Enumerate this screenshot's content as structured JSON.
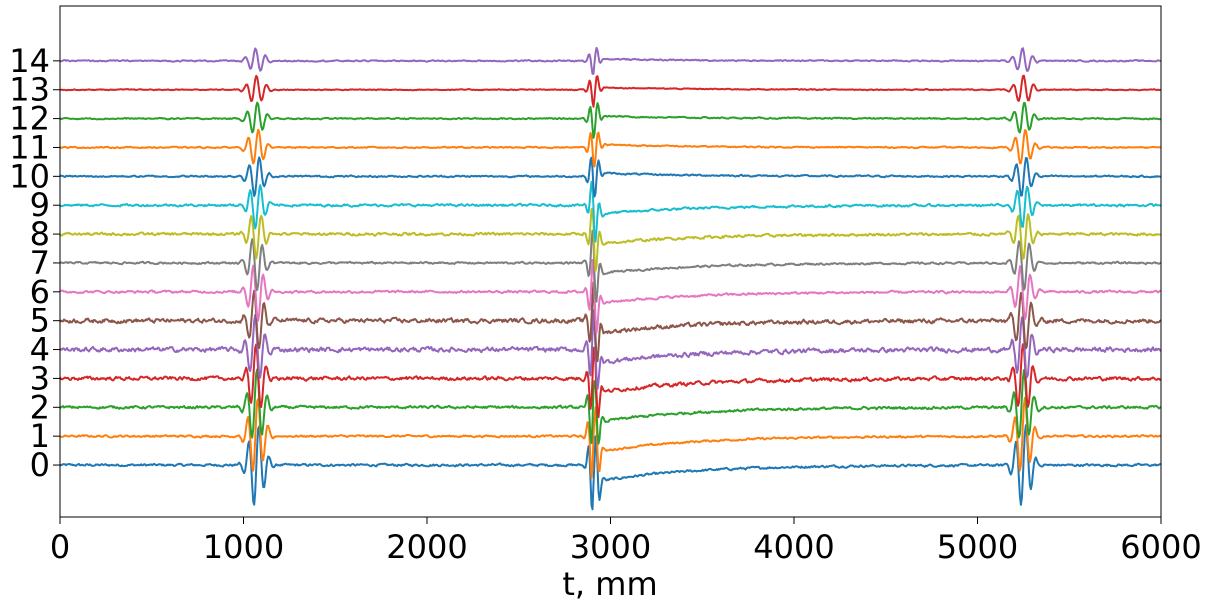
{
  "chart_data": {
    "type": "line",
    "title": "",
    "xlabel": "t, mm",
    "ylabel": "",
    "xlim": [
      0,
      6000
    ],
    "ylim": [
      -1.8,
      15.9
    ],
    "x_ticks": [
      0,
      1000,
      2000,
      3000,
      4000,
      5000,
      6000
    ],
    "x_tick_labels": [
      "0",
      "1000",
      "2000",
      "3000",
      "4000",
      "5000",
      "6000"
    ],
    "y_ticks": [
      0,
      1,
      2,
      3,
      4,
      5,
      6,
      7,
      8,
      9,
      10,
      11,
      12,
      13,
      14
    ],
    "y_tick_labels": [
      "0",
      "1",
      "2",
      "3",
      "4",
      "5",
      "6",
      "7",
      "8",
      "9",
      "10",
      "11",
      "12",
      "13",
      "14"
    ],
    "grid": false,
    "legend": "none",
    "events": [
      {
        "t": 1070,
        "kind": "burst"
      },
      {
        "t": 2910,
        "kind": "step"
      },
      {
        "t": 5250,
        "kind": "burst"
      }
    ],
    "series": [
      {
        "offset": 0,
        "color": "#1f77b4",
        "noise": 0.07
      },
      {
        "offset": 1,
        "color": "#ff7f0e",
        "noise": 0.06
      },
      {
        "offset": 2,
        "color": "#2ca02c",
        "noise": 0.08
      },
      {
        "offset": 3,
        "color": "#d62728",
        "noise": 0.11
      },
      {
        "offset": 4,
        "color": "#9467bd",
        "noise": 0.14
      },
      {
        "offset": 5,
        "color": "#8c564b",
        "noise": 0.13
      },
      {
        "offset": 6,
        "color": "#e377c2",
        "noise": 0.07
      },
      {
        "offset": 7,
        "color": "#7f7f7f",
        "noise": 0.06
      },
      {
        "offset": 8,
        "color": "#bcbd22",
        "noise": 0.08
      },
      {
        "offset": 9,
        "color": "#17becf",
        "noise": 0.07
      },
      {
        "offset": 10,
        "color": "#1f77b4",
        "noise": 0.05
      },
      {
        "offset": 11,
        "color": "#ff7f0e",
        "noise": 0.04
      },
      {
        "offset": 12,
        "color": "#2ca02c",
        "noise": 0.04
      },
      {
        "offset": 13,
        "color": "#d62728",
        "noise": 0.03
      },
      {
        "offset": 14,
        "color": "#9467bd",
        "noise": 0.04
      }
    ]
  }
}
